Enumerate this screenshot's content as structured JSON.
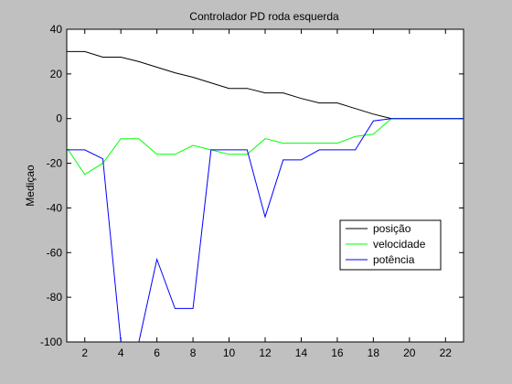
{
  "window": {
    "background": "#c0c0c0"
  },
  "chart_data": {
    "type": "line",
    "title": "Controlador PD roda esquerda",
    "xlabel": "",
    "ylabel": "Mediçao",
    "xlim": [
      1,
      23
    ],
    "ylim": [
      -100,
      40
    ],
    "xticks": [
      2,
      4,
      6,
      8,
      10,
      12,
      14,
      16,
      18,
      20,
      22
    ],
    "yticks": [
      -100,
      -80,
      -60,
      -40,
      -20,
      0,
      20,
      40
    ],
    "grid": false,
    "legend_position": "lower-right",
    "x": [
      1,
      2,
      3,
      4,
      5,
      6,
      7,
      8,
      9,
      10,
      11,
      12,
      13,
      14,
      15,
      16,
      17,
      18,
      19,
      20,
      21,
      22,
      23
    ],
    "series": [
      {
        "name": "posição",
        "color": "#000000",
        "values": [
          30,
          30,
          27.5,
          27.5,
          25.5,
          23,
          20.5,
          18.5,
          16,
          13.5,
          13.5,
          11.5,
          11.5,
          9,
          7,
          7,
          4.5,
          2,
          0,
          0,
          0,
          0,
          0
        ]
      },
      {
        "name": "velocidade",
        "color": "#00ff00",
        "values": [
          -13,
          -25,
          -20,
          -9,
          -9,
          -16,
          -16,
          -12,
          -14,
          -16,
          -16,
          -9,
          -11,
          -11,
          -11,
          -11,
          -8,
          -7,
          0,
          0,
          0,
          0,
          0
        ]
      },
      {
        "name": "potência",
        "color": "#0000ff",
        "values": [
          -14,
          -14,
          -18,
          -100,
          -100,
          -63,
          -85,
          -85,
          -14,
          -14,
          -14,
          -44,
          -18.5,
          -18.5,
          -14,
          -14,
          -14,
          -1,
          0,
          0,
          0,
          0,
          0
        ]
      }
    ]
  }
}
